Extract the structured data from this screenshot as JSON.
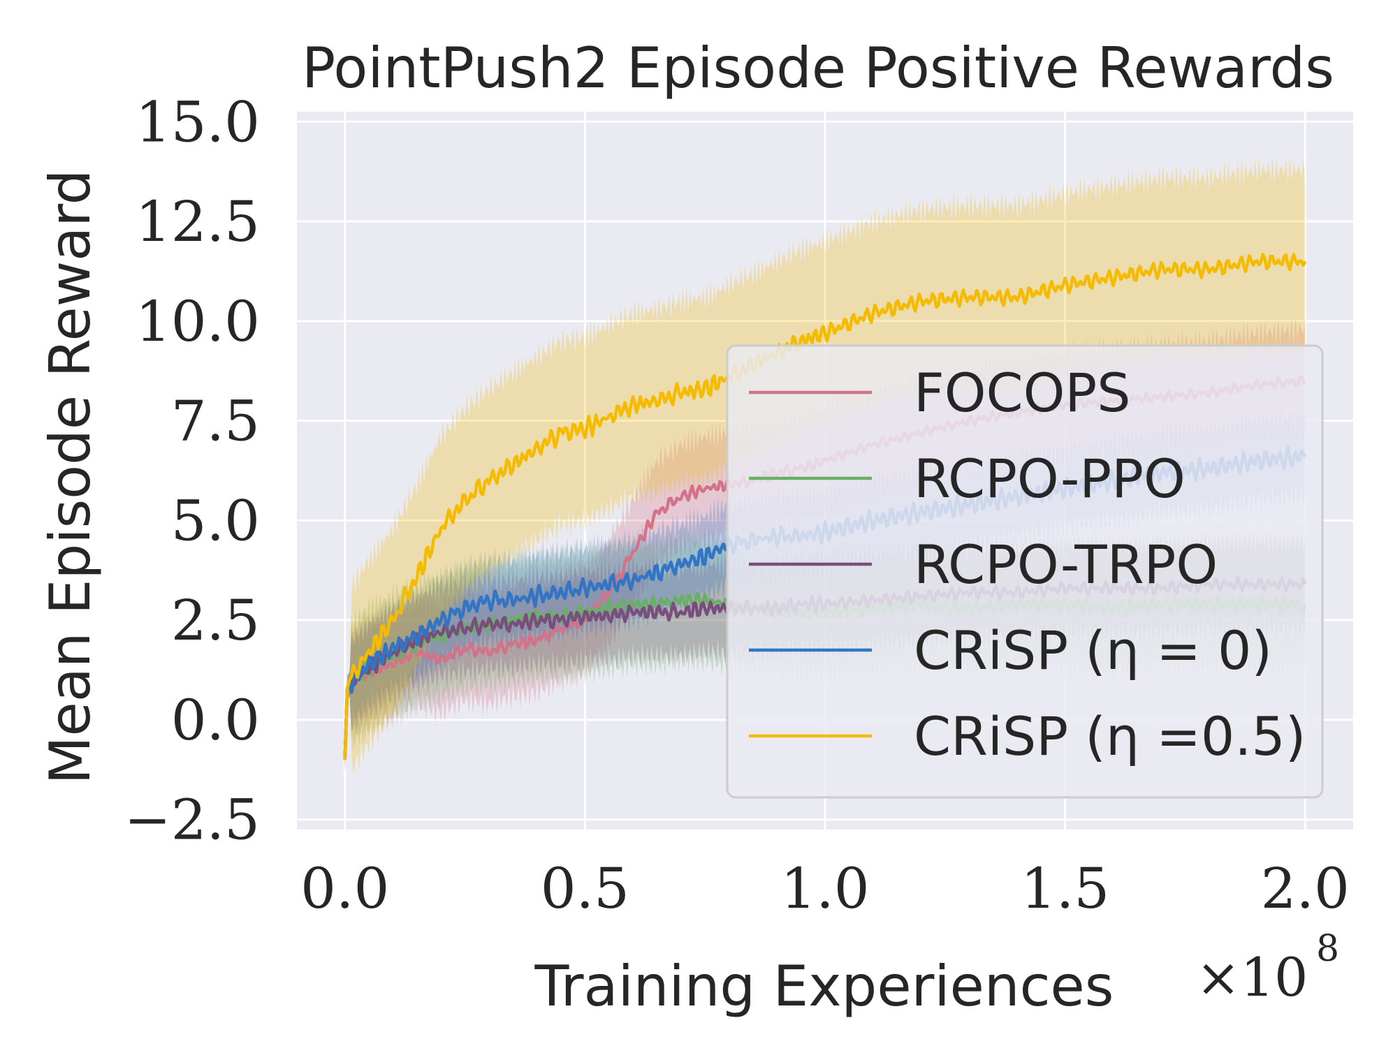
{
  "chart_data": {
    "type": "line",
    "title": "PointPush2 Episode Positive Rewards",
    "xlabel": "Training Experiences",
    "ylabel": "Mean Episode Reward",
    "x_multiplier_label": "×10",
    "x_multiplier_exponent": "8",
    "xlim": [
      -0.1,
      2.1
    ],
    "ylim": [
      -2.75,
      15.25
    ],
    "x_ticks": [
      0.0,
      0.5,
      1.0,
      1.5,
      2.0
    ],
    "x_tick_labels": [
      "0.0",
      "0.5",
      "1.0",
      "1.5",
      "2.0"
    ],
    "y_ticks": [
      -2.5,
      0.0,
      2.5,
      5.0,
      7.5,
      10.0,
      12.5,
      15.0
    ],
    "y_tick_labels": [
      "−2.5",
      "0.0",
      "2.5",
      "5.0",
      "7.5",
      "10.0",
      "12.5",
      "15.0"
    ],
    "grid": true,
    "background_color": "#eaeaf2",
    "legend_position": "lower-right",
    "x": [
      0.0,
      0.005,
      0.01,
      0.05,
      0.1,
      0.15,
      0.2,
      0.25,
      0.3,
      0.35,
      0.4,
      0.45,
      0.5,
      0.55,
      0.6,
      0.65,
      0.7,
      0.75,
      0.8,
      0.85,
      0.9,
      0.95,
      1.0,
      1.1,
      1.2,
      1.3,
      1.4,
      1.5,
      1.6,
      1.7,
      1.8,
      1.9,
      2.0
    ],
    "series": [
      {
        "name": "FOCOPS",
        "color": "#d4728a",
        "values": [
          -1.0,
          0.8,
          0.9,
          1.2,
          1.4,
          1.7,
          1.5,
          1.8,
          1.7,
          1.9,
          2.0,
          2.3,
          2.5,
          3.2,
          4.2,
          5.2,
          5.6,
          5.8,
          5.9,
          6.0,
          6.2,
          6.3,
          6.5,
          6.9,
          7.2,
          7.5,
          7.7,
          7.9,
          8.0,
          8.1,
          8.2,
          8.4,
          8.5
        ],
        "band": 1.3
      },
      {
        "name": "RCPO-PPO",
        "color": "#6aaf66",
        "values": [
          -1.0,
          0.8,
          0.9,
          1.3,
          1.6,
          1.9,
          2.1,
          2.3,
          2.4,
          2.5,
          2.6,
          2.6,
          2.7,
          2.8,
          2.9,
          2.9,
          3.0,
          3.0,
          2.9,
          2.8,
          2.7,
          2.7,
          2.7,
          2.8,
          2.9,
          2.8,
          2.9,
          2.9,
          2.8,
          2.9,
          2.9,
          2.9,
          2.9
        ],
        "band": 1.5
      },
      {
        "name": "RCPO-TRPO",
        "color": "#7a4e7c",
        "values": [
          -1.0,
          0.8,
          0.9,
          1.3,
          1.7,
          2.0,
          2.2,
          2.3,
          2.4,
          2.4,
          2.5,
          2.5,
          2.6,
          2.6,
          2.7,
          2.7,
          2.7,
          2.8,
          2.8,
          2.8,
          2.8,
          2.9,
          2.9,
          3.0,
          3.1,
          3.2,
          3.2,
          3.3,
          3.3,
          3.3,
          3.4,
          3.4,
          3.4
        ],
        "band": 1.1
      },
      {
        "name": "CRiSP (η = 0)",
        "color": "#3274c6",
        "values": [
          -1.0,
          0.8,
          0.9,
          1.4,
          1.8,
          2.1,
          2.5,
          2.8,
          3.0,
          3.0,
          3.1,
          3.2,
          3.3,
          3.4,
          3.5,
          3.7,
          3.9,
          4.1,
          4.4,
          4.5,
          4.6,
          4.6,
          4.7,
          5.0,
          5.2,
          5.4,
          5.6,
          5.8,
          6.0,
          6.2,
          6.3,
          6.5,
          6.6
        ],
        "band": 1.0
      },
      {
        "name": "CRiSP (η =0.5)",
        "color": "#f5bb00",
        "values": [
          -1.0,
          0.8,
          1.0,
          1.7,
          2.5,
          3.6,
          4.8,
          5.5,
          6.0,
          6.4,
          6.8,
          7.2,
          7.3,
          7.6,
          7.9,
          8.0,
          8.2,
          8.3,
          8.6,
          8.9,
          9.2,
          9.5,
          9.7,
          10.2,
          10.5,
          10.6,
          10.6,
          10.9,
          11.1,
          11.3,
          11.3,
          11.5,
          11.5
        ],
        "band": 2.3
      }
    ]
  }
}
